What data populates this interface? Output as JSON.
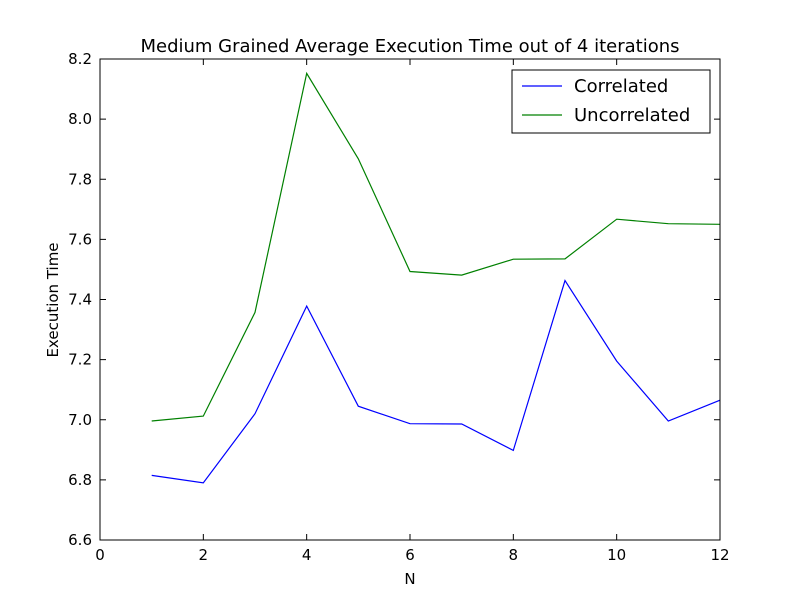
{
  "chart_data": {
    "type": "line",
    "title": "Medium Grained Average Execution Time out of 4 iterations",
    "xlabel": "N",
    "ylabel": "Execution Time",
    "xlim": [
      0,
      12
    ],
    "ylim": [
      6.6,
      8.2
    ],
    "xticks": [
      0,
      2,
      4,
      6,
      8,
      10,
      12
    ],
    "yticks": [
      6.6,
      6.8,
      7.0,
      7.2,
      7.4,
      7.6,
      7.8,
      8.0,
      8.2
    ],
    "grid": false,
    "legend_position": "top-right",
    "x": [
      1,
      2,
      3,
      4,
      5,
      6,
      7,
      8,
      9,
      10,
      11,
      12
    ],
    "series": [
      {
        "name": "Correlated",
        "color": "#0000ff",
        "values": [
          6.815,
          6.79,
          7.02,
          7.378,
          7.045,
          6.987,
          6.986,
          6.898,
          7.463,
          7.195,
          6.996,
          7.065
        ]
      },
      {
        "name": "Uncorrelated",
        "color": "#008000",
        "values": [
          6.996,
          7.012,
          7.357,
          8.152,
          7.868,
          7.493,
          7.481,
          7.534,
          7.535,
          7.667,
          7.652,
          7.65
        ]
      }
    ]
  }
}
